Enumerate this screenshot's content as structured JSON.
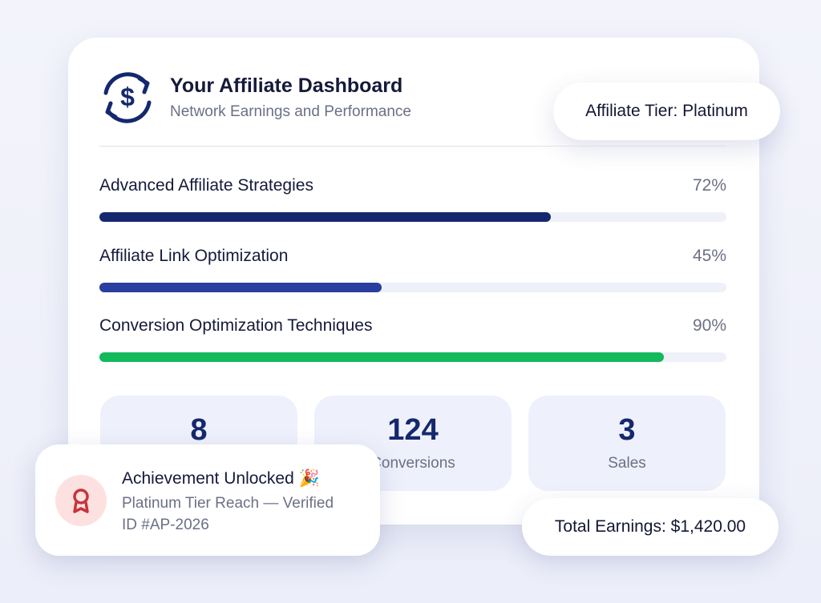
{
  "header": {
    "title": "Your Affiliate Dashboard",
    "subtitle": "Network Earnings and Performance"
  },
  "tier_badge": "Affiliate Tier: Platinum",
  "progress": [
    {
      "label": "Advanced Affiliate Strategies",
      "value": 72,
      "value_label": "72%",
      "color": "#15286e"
    },
    {
      "label": "Affiliate Link Optimization",
      "value": 45,
      "value_label": "45%",
      "color": "#283f9e"
    },
    {
      "label": "Conversion Optimization Techniques",
      "value": 90,
      "value_label": "90%",
      "color": "#13b95b"
    }
  ],
  "stats": [
    {
      "value": 8
    },
    {
      "value": 124,
      "label": "Conversions"
    },
    {
      "value": 3,
      "label": "Sales"
    }
  ],
  "achievement": {
    "title": "Achievement Unlocked 🎉",
    "lines": [
      "Platinum Tier Reach — Verified",
      "ID #AP-2026"
    ]
  },
  "total_earnings": "Total Earnings: $1,420.00"
}
